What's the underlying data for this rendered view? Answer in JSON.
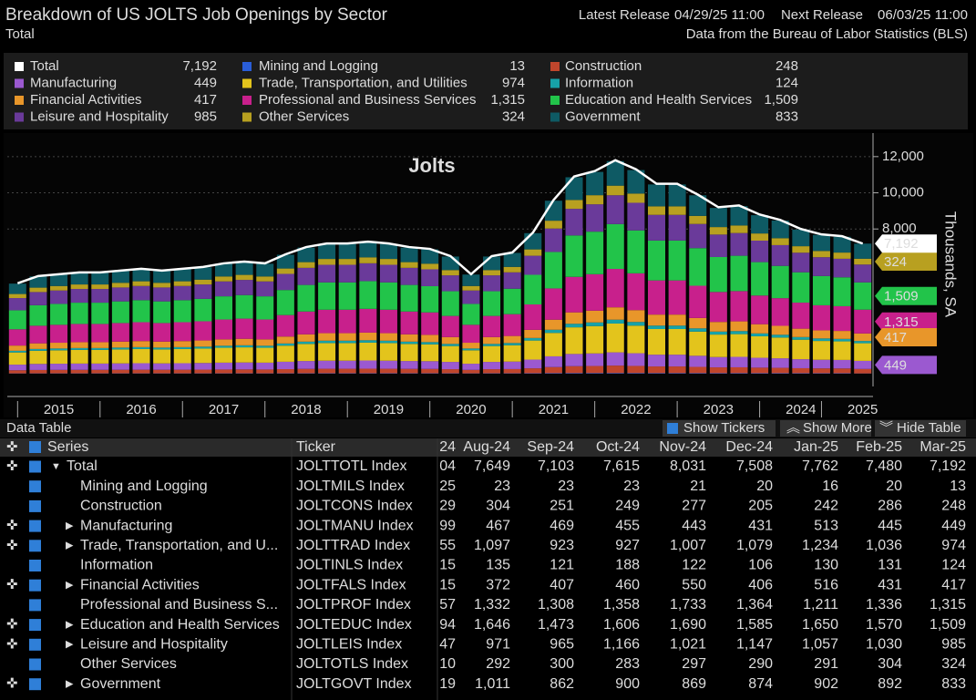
{
  "header": {
    "title": "Breakdown of US JOLTS Job Openings by Sector",
    "subtitle": "Total",
    "latest_label": "Latest Release",
    "latest": "04/29/25 11:00",
    "next_label": "Next Release",
    "next": "06/03/25 11:00",
    "source": "Data from the Bureau of Labor Statistics (BLS)"
  },
  "chart_data": {
    "type": "bar",
    "title": "Jolts",
    "y_label": "Thousands, SA",
    "ylim": [
      0,
      13100
    ],
    "yticks": [
      {
        "value": 8000,
        "label": "8,000"
      },
      {
        "value": 10000,
        "label": "10,000"
      },
      {
        "value": 12000,
        "label": "12,000"
      }
    ],
    "grid": true,
    "categories": [
      null,
      null,
      "2015",
      null,
      null,
      null,
      "2016",
      null,
      null,
      null,
      "2017",
      null,
      null,
      null,
      "2018",
      null,
      null,
      null,
      "2019",
      null,
      null,
      null,
      "2020",
      null,
      null,
      null,
      "2021",
      null,
      null,
      null,
      "2022",
      null,
      null,
      null,
      "2023",
      null,
      null,
      null,
      "2024",
      null,
      null,
      "2025"
    ],
    "line": {
      "name": "Total",
      "color": "#ffffff",
      "value_label": "7,192",
      "values": [
        5000,
        5400,
        5500,
        5600,
        5600,
        5700,
        5800,
        5700,
        5800,
        5900,
        6100,
        6200,
        6100,
        6600,
        7000,
        7200,
        7200,
        7300,
        7200,
        7000,
        6900,
        6500,
        5500,
        6500,
        6700,
        7800,
        9600,
        10900,
        11200,
        11800,
        11300,
        10500,
        10500,
        9900,
        9200,
        9300,
        8800,
        8500,
        8000,
        7700,
        7600,
        7192
      ]
    },
    "series": [
      {
        "name": "Mining and Logging",
        "color": "#2a5ed8",
        "value_label": "13",
        "values": [
          15,
          16,
          17,
          17,
          17,
          17,
          17,
          17,
          17,
          18,
          18,
          19,
          18,
          20,
          21,
          22,
          22,
          22,
          22,
          21,
          21,
          20,
          17,
          20,
          20,
          23,
          29,
          33,
          34,
          35,
          34,
          32,
          32,
          30,
          28,
          28,
          26,
          26,
          24,
          23,
          23,
          13
        ]
      },
      {
        "name": "Construction",
        "color": "#c0462c",
        "value_label": "248",
        "values": [
          175,
          189,
          193,
          196,
          196,
          200,
          203,
          200,
          203,
          207,
          214,
          217,
          214,
          231,
          245,
          252,
          252,
          256,
          252,
          245,
          242,
          228,
          193,
          228,
          235,
          273,
          336,
          382,
          392,
          413,
          396,
          368,
          368,
          347,
          322,
          326,
          308,
          298,
          280,
          270,
          266,
          248
        ]
      },
      {
        "name": "Manufacturing",
        "color": "#9b59d0",
        "value_label": "449",
        "values": [
          310,
          335,
          341,
          347,
          347,
          353,
          360,
          353,
          360,
          366,
          378,
          384,
          378,
          409,
          434,
          446,
          446,
          453,
          446,
          434,
          428,
          403,
          341,
          403,
          415,
          484,
          595,
          676,
          694,
          732,
          701,
          651,
          651,
          614,
          570,
          577,
          546,
          527,
          496,
          477,
          471,
          449
        ]
      },
      {
        "name": "Trade, Transportation, and Utilities",
        "color": "#e3c41c",
        "value_label": "974",
        "values": [
          675,
          729,
          743,
          756,
          756,
          770,
          783,
          770,
          783,
          797,
          824,
          837,
          824,
          891,
          945,
          972,
          972,
          986,
          972,
          945,
          932,
          878,
          743,
          878,
          905,
          1053,
          1296,
          1472,
          1512,
          1593,
          1526,
          1418,
          1418,
          1337,
          1242,
          1256,
          1188,
          1148,
          1080,
          1040,
          1026,
          974
        ]
      },
      {
        "name": "Information",
        "color": "#17a2a8",
        "value_label": "124",
        "values": [
          90,
          97,
          99,
          101,
          101,
          103,
          104,
          103,
          104,
          106,
          110,
          112,
          110,
          119,
          126,
          130,
          130,
          131,
          130,
          126,
          124,
          117,
          99,
          117,
          121,
          140,
          173,
          196,
          202,
          212,
          203,
          189,
          189,
          178,
          166,
          167,
          158,
          153,
          144,
          139,
          137,
          124
        ]
      },
      {
        "name": "Financial Activities",
        "color": "#e8962a",
        "value_label": "417",
        "values": [
          290,
          313,
          319,
          325,
          325,
          331,
          336,
          331,
          336,
          342,
          354,
          360,
          354,
          383,
          406,
          418,
          418,
          423,
          418,
          406,
          400,
          377,
          319,
          377,
          389,
          452,
          557,
          632,
          650,
          684,
          655,
          609,
          609,
          574,
          534,
          539,
          510,
          493,
          464,
          447,
          441,
          417
        ]
      },
      {
        "name": "Professional and Business Services",
        "color": "#c8208c",
        "value_label": "1,315",
        "values": [
          900,
          972,
          990,
          1008,
          1008,
          1026,
          1044,
          1026,
          1044,
          1062,
          1098,
          1116,
          1098,
          1188,
          1260,
          1296,
          1296,
          1314,
          1296,
          1260,
          1242,
          1170,
          990,
          1170,
          1206,
          1404,
          1728,
          1962,
          2016,
          2124,
          2034,
          1890,
          1890,
          1782,
          1656,
          1674,
          1584,
          1530,
          1440,
          1386,
          1368,
          1315
        ]
      },
      {
        "name": "Education and Health Services",
        "color": "#22c44a",
        "value_label": "1,509",
        "values": [
          1050,
          1134,
          1155,
          1176,
          1176,
          1197,
          1218,
          1197,
          1218,
          1239,
          1281,
          1302,
          1281,
          1386,
          1470,
          1512,
          1512,
          1533,
          1512,
          1470,
          1449,
          1365,
          1155,
          1365,
          1407,
          1638,
          2016,
          2289,
          2352,
          2478,
          2373,
          2205,
          2205,
          2079,
          1932,
          1953,
          1848,
          1785,
          1680,
          1617,
          1596,
          1509
        ]
      },
      {
        "name": "Leisure and Hospitality",
        "color": "#6a3a9a",
        "value_label": "985",
        "values": [
          675,
          729,
          743,
          756,
          756,
          770,
          783,
          770,
          783,
          797,
          824,
          837,
          824,
          891,
          945,
          972,
          972,
          986,
          972,
          945,
          932,
          878,
          743,
          878,
          905,
          1053,
          1296,
          1472,
          1512,
          1593,
          1526,
          1418,
          1418,
          1337,
          1242,
          1256,
          1188,
          1148,
          1080,
          1040,
          1026,
          985
        ]
      },
      {
        "name": "Other Services",
        "color": "#b8a020",
        "value_label": "324",
        "values": [
          225,
          243,
          248,
          252,
          252,
          257,
          261,
          257,
          261,
          266,
          275,
          279,
          275,
          297,
          315,
          324,
          324,
          329,
          324,
          315,
          311,
          293,
          248,
          293,
          302,
          351,
          432,
          491,
          504,
          531,
          509,
          473,
          473,
          446,
          414,
          419,
          396,
          383,
          360,
          347,
          342,
          324
        ]
      },
      {
        "name": "Government",
        "color": "#0e5a64",
        "value_label": "833",
        "values": [
          575,
          621,
          633,
          644,
          644,
          656,
          667,
          656,
          667,
          679,
          702,
          713,
          702,
          759,
          805,
          828,
          828,
          840,
          828,
          805,
          794,
          748,
          633,
          748,
          771,
          897,
          1104,
          1254,
          1288,
          1357,
          1300,
          1208,
          1208,
          1139,
          1058,
          1070,
          1012,
          978,
          920,
          886,
          874,
          833
        ]
      }
    ]
  },
  "toolbar": {
    "title": "Data Table",
    "tickers": "Show Tickers",
    "more": "Show More",
    "hide": "Hide Table"
  },
  "table": {
    "columns": [
      "Series",
      "Ticker",
      "24",
      "Aug-24",
      "Sep-24",
      "Oct-24",
      "Nov-24",
      "Dec-24",
      "Jan-25",
      "Feb-25",
      "Mar-25"
    ],
    "rows": [
      [
        "Total",
        "JOLTTOTL Index",
        "04",
        "7,649",
        "7,103",
        "7,615",
        "8,031",
        "7,508",
        "7,762",
        "7,480",
        "7,192"
      ],
      [
        "Mining and Logging",
        "JOLTMILS Index",
        "25",
        "23",
        "23",
        "23",
        "21",
        "20",
        "16",
        "20",
        "13"
      ],
      [
        "Construction",
        "JOLTCONS Index",
        "29",
        "304",
        "251",
        "249",
        "277",
        "205",
        "242",
        "286",
        "248"
      ],
      [
        "Manufacturing",
        "JOLTMANU Index",
        "99",
        "467",
        "469",
        "455",
        "443",
        "431",
        "513",
        "445",
        "449"
      ],
      [
        "Trade, Transportation, and U...",
        "JOLTTRAD Index",
        "55",
        "1,097",
        "923",
        "927",
        "1,007",
        "1,079",
        "1,234",
        "1,036",
        "974"
      ],
      [
        "Information",
        "JOLTINLS Index",
        "15",
        "135",
        "121",
        "188",
        "122",
        "106",
        "130",
        "131",
        "124"
      ],
      [
        "Financial Activities",
        "JOLTFALS Index",
        "15",
        "372",
        "407",
        "460",
        "550",
        "406",
        "516",
        "431",
        "417"
      ],
      [
        "Professional and Business S...",
        "JOLTPROF Index",
        "57",
        "1,332",
        "1,308",
        "1,358",
        "1,733",
        "1,364",
        "1,211",
        "1,336",
        "1,315"
      ],
      [
        "Education and Health Services",
        "JOLTEDUC Index",
        "94",
        "1,646",
        "1,473",
        "1,606",
        "1,690",
        "1,585",
        "1,650",
        "1,570",
        "1,509"
      ],
      [
        "Leisure and Hospitality",
        "JOLTLEIS Index",
        "47",
        "971",
        "965",
        "1,166",
        "1,021",
        "1,147",
        "1,057",
        "1,030",
        "985"
      ],
      [
        "Other Services",
        "JOLTOTLS Index",
        "10",
        "292",
        "300",
        "283",
        "297",
        "290",
        "291",
        "304",
        "324"
      ],
      [
        "Government",
        "JOLTGOVT Index",
        "19",
        "1,011",
        "862",
        "900",
        "869",
        "874",
        "902",
        "892",
        "833"
      ]
    ]
  }
}
